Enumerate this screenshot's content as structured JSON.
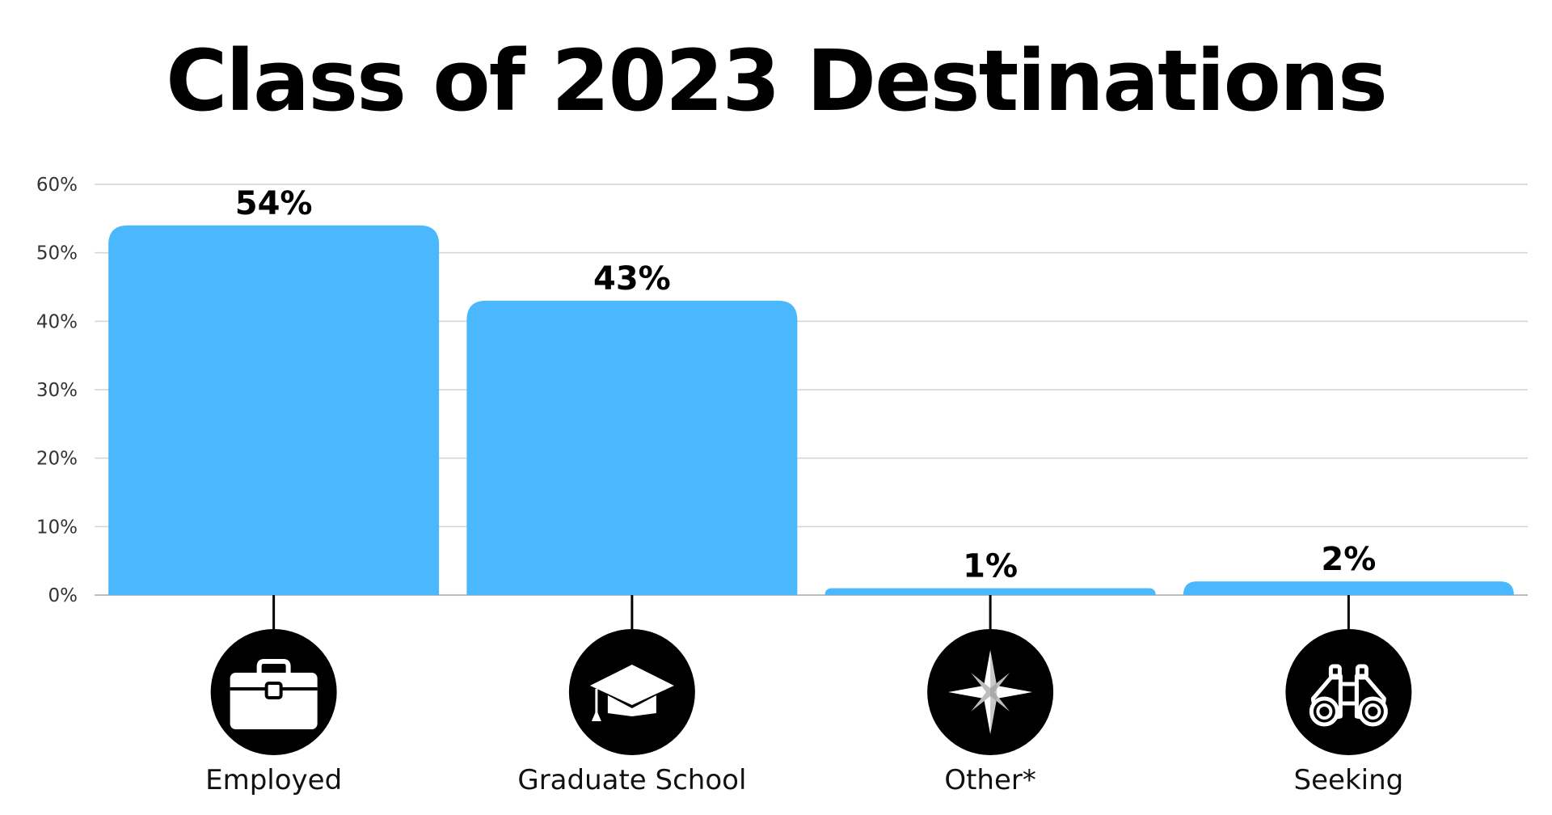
{
  "chart_data": {
    "type": "bar",
    "title": "Class of 2023 Destinations",
    "xlabel": "",
    "ylabel": "",
    "ylim": [
      0,
      60
    ],
    "y_ticks": [
      "0%",
      "10%",
      "20%",
      "30%",
      "40%",
      "50%",
      "60%"
    ],
    "grid": true,
    "categories": [
      "Employed",
      "Graduate School",
      "Other*",
      "Seeking"
    ],
    "values": [
      54,
      43,
      1,
      2
    ],
    "data_labels": [
      "54%",
      "43%",
      "1%",
      "2%"
    ],
    "icons": [
      "briefcase-icon",
      "graduation-cap-icon",
      "compass-rose-icon",
      "binoculars-icon"
    ],
    "colors": {
      "bar": "#4bb8fd",
      "grid": "#d4d4d4",
      "icon_circle": "#000000",
      "icon_glyph": "#ffffff",
      "text": "#000000"
    }
  }
}
